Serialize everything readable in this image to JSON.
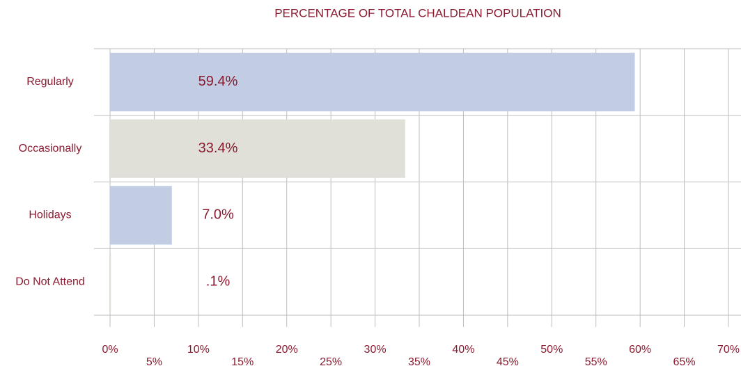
{
  "chart_data": {
    "type": "barh",
    "title": "PERCENTAGE OF TOTAL CHALDEAN POPULATION",
    "categories": [
      "Regularly",
      "Occasionally",
      "Holidays",
      "Do Not Attend"
    ],
    "values": [
      59.4,
      33.4,
      7.0,
      0.1
    ],
    "value_labels": [
      "59.4%",
      "33.4%",
      "7.0%",
      ".1%"
    ],
    "colors": [
      "#c2cce3",
      "#e0e0d8",
      "#c2cce3",
      "#e0e0d8"
    ],
    "xlim": [
      0,
      70
    ],
    "xticks": [
      {
        "value": 0,
        "label": "0%"
      },
      {
        "value": 5,
        "label": "5%"
      },
      {
        "value": 10,
        "label": "10%"
      },
      {
        "value": 15,
        "label": "15%"
      },
      {
        "value": 20,
        "label": "20%"
      },
      {
        "value": 25,
        "label": "25%"
      },
      {
        "value": 30,
        "label": "30%"
      },
      {
        "value": 35,
        "label": "35%"
      },
      {
        "value": 40,
        "label": "40%"
      },
      {
        "value": 45,
        "label": "45%"
      },
      {
        "value": 50,
        "label": "50%"
      },
      {
        "value": 55,
        "label": "55%"
      },
      {
        "value": 60,
        "label": "60%"
      },
      {
        "value": 65,
        "label": "65%"
      },
      {
        "value": 70,
        "label": "70%"
      }
    ],
    "grid": true
  }
}
